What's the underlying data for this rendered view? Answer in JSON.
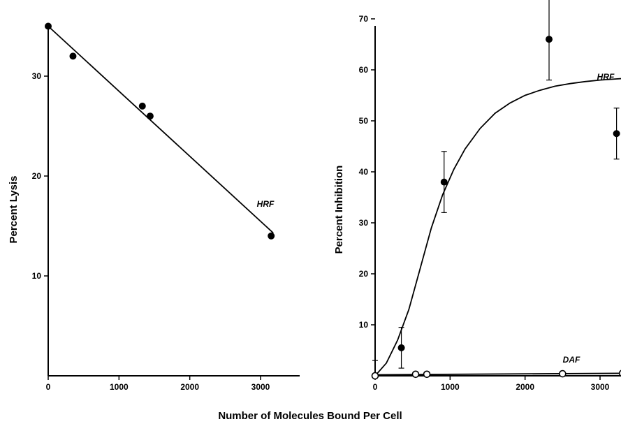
{
  "xlabel": "Number of Molecules Bound Per Cell",
  "chart_data": [
    {
      "type": "scatter",
      "ylabel": "Percent Lysis",
      "xlim": [
        0,
        3300
      ],
      "ylim": [
        0,
        35
      ],
      "xticks": [
        0,
        1000,
        2000,
        3000
      ],
      "yticks": [
        10,
        20,
        30
      ],
      "series": [
        {
          "name": "HRF",
          "marker": "filled-circle",
          "x": [
            0,
            350,
            1330,
            1440,
            3150
          ],
          "y": [
            35,
            32,
            27,
            26,
            14
          ],
          "fit": {
            "kind": "linear",
            "x": [
              0,
              3180
            ],
            "y": [
              35,
              14.3
            ]
          }
        }
      ]
    },
    {
      "type": "scatter",
      "ylabel": "Percent Inhibition",
      "xlim": [
        0,
        3300
      ],
      "ylim": [
        0,
        72
      ],
      "xticks": [
        0,
        1000,
        2000,
        3000
      ],
      "yticks": [
        10,
        20,
        30,
        40,
        50,
        60,
        70
      ],
      "series": [
        {
          "name": "HRF",
          "marker": "filled-circle",
          "x": [
            0,
            350,
            920,
            2320,
            3220
          ],
          "y": [
            0,
            5.5,
            38,
            66,
            47.5
          ],
          "err": [
            3,
            4,
            6,
            8,
            5
          ],
          "fit": {
            "kind": "sigmoid",
            "x": [
              0,
              150,
              300,
              450,
              600,
              750,
              900,
              1050,
              1200,
              1400,
              1600,
              1800,
              2000,
              2200,
              2400,
              2600,
              2800,
              3000,
              3200,
              3300
            ],
            "y": [
              0,
              2.5,
              7,
              13,
              21,
              29,
              35.5,
              40.5,
              44.5,
              48.5,
              51.5,
              53.5,
              55,
              56,
              56.8,
              57.3,
              57.7,
              58,
              58.2,
              58.3
            ]
          }
        },
        {
          "name": "DAF",
          "marker": "open-circle",
          "x": [
            0,
            540,
            690,
            2500,
            3300
          ],
          "y": [
            0,
            0.3,
            0.3,
            0.4,
            0.5
          ],
          "fit": {
            "kind": "linear",
            "x": [
              0,
              3300
            ],
            "y": [
              0.2,
              0.5
            ]
          }
        }
      ]
    }
  ]
}
